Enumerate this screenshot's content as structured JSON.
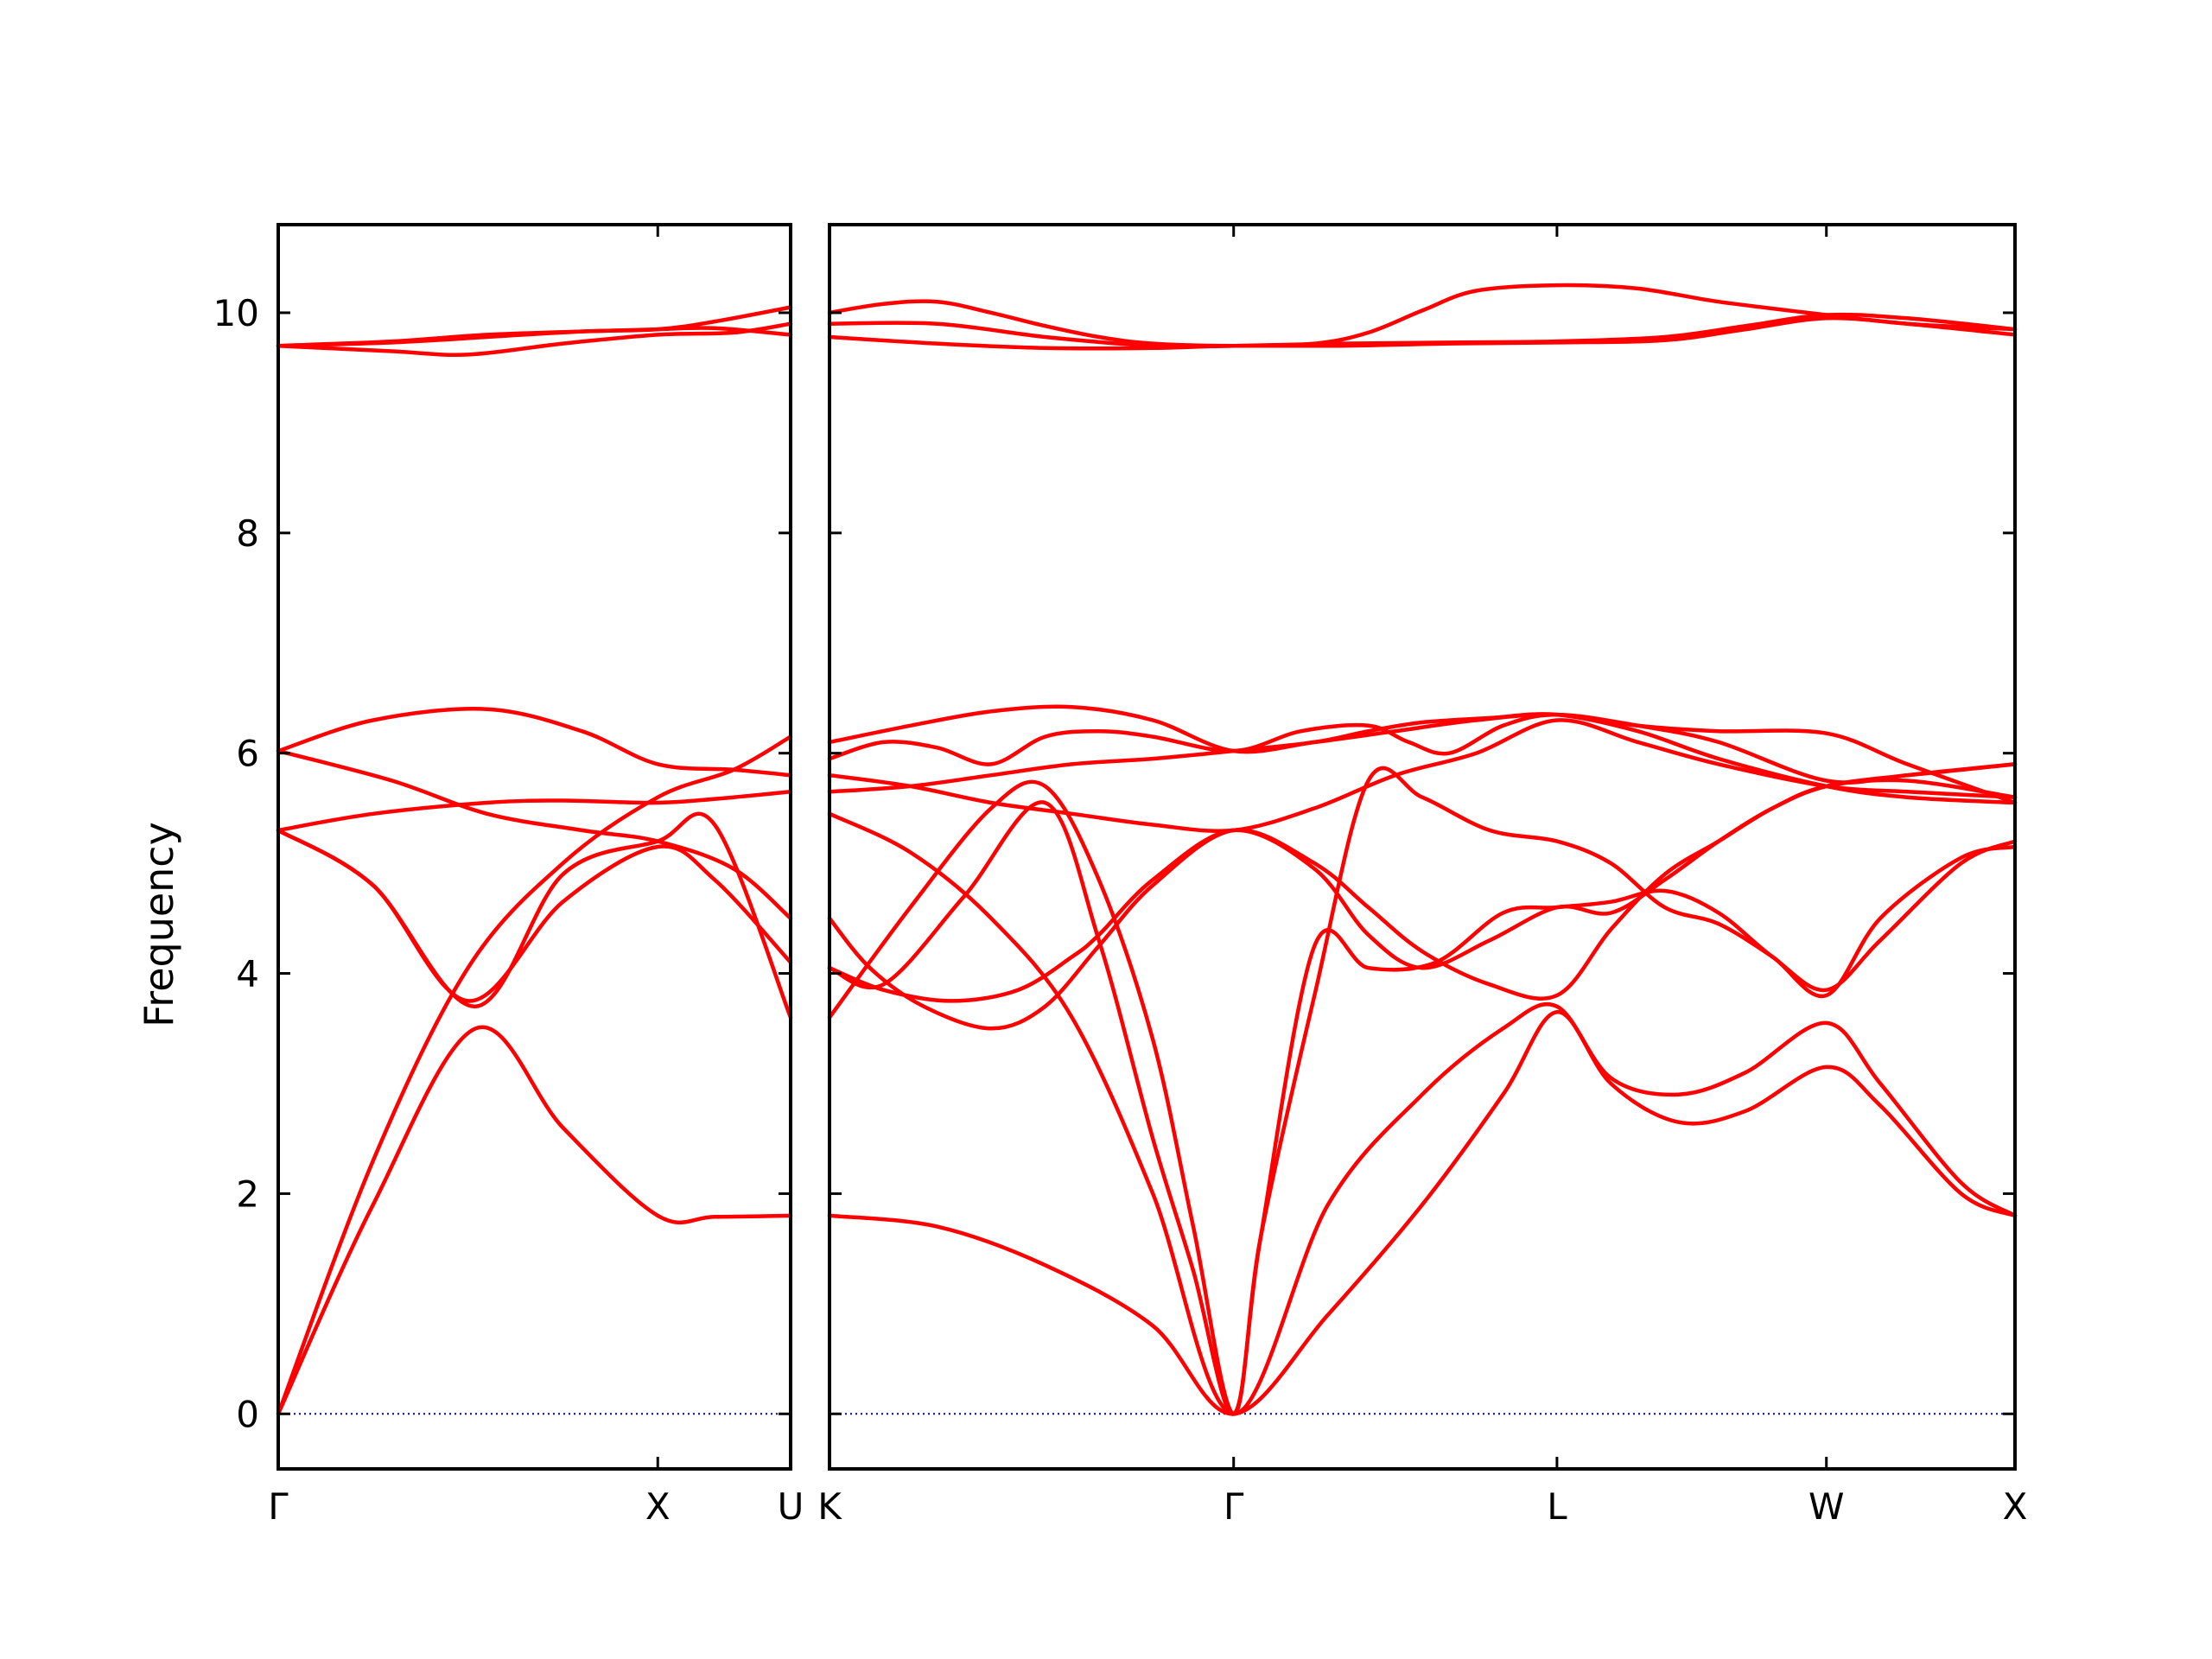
{
  "chart_data": {
    "type": "line",
    "title": "",
    "ylabel": "Frequency",
    "ylim": [
      -0.5,
      10.8
    ],
    "yticks": [
      0,
      2,
      4,
      6,
      8,
      10
    ],
    "grid": false,
    "legend": "none",
    "colors": {
      "bands": "#ff0000",
      "zero_line": "#0000aa",
      "frame": "#000000"
    },
    "panels": [
      {
        "name": "left",
        "xrange": [
          0,
          1.35
        ],
        "xticks": [
          {
            "pos": 0,
            "label": "Γ"
          },
          {
            "pos": 1.0,
            "label": "X"
          },
          {
            "pos": 1.35,
            "label": "U"
          }
        ],
        "series": [
          {
            "x": [
              0,
              0.25,
              0.52,
              0.75,
              1.0,
              1.15,
              1.35
            ],
            "y": [
              0,
              1.9,
              3.5,
              2.6,
              1.8,
              1.79,
              1.8
            ]
          },
          {
            "x": [
              0,
              0.25,
              0.5,
              0.75,
              1.0,
              1.2,
              1.35
            ],
            "y": [
              0,
              2.3,
              4.05,
              5.0,
              5.6,
              5.85,
              6.15
            ]
          },
          {
            "x": [
              0,
              0.25,
              0.5,
              0.75,
              1.0,
              1.15,
              1.35
            ],
            "y": [
              5.3,
              4.8,
              3.75,
              4.65,
              5.15,
              4.85,
              4.1
            ]
          },
          {
            "x": [
              0,
              0.25,
              0.52,
              0.75,
              1.0,
              1.15,
              1.35
            ],
            "y": [
              5.3,
              4.8,
              3.7,
              4.9,
              5.2,
              5.35,
              3.6
            ]
          },
          {
            "x": [
              0,
              0.25,
              0.55,
              0.75,
              1.0,
              1.2,
              1.35
            ],
            "y": [
              5.3,
              5.45,
              5.55,
              5.57,
              5.55,
              5.6,
              5.65
            ]
          },
          {
            "x": [
              0,
              0.3,
              0.55,
              0.8,
              1.0,
              1.2,
              1.35
            ],
            "y": [
              6.02,
              5.75,
              5.45,
              5.3,
              5.2,
              4.95,
              4.5
            ]
          },
          {
            "x": [
              0,
              0.25,
              0.55,
              0.8,
              1.0,
              1.2,
              1.35
            ],
            "y": [
              6.02,
              6.3,
              6.4,
              6.2,
              5.9,
              5.85,
              5.8
            ]
          },
          {
            "x": [
              0,
              0.3,
              0.5,
              0.75,
              1.0,
              1.2,
              1.35
            ],
            "y": [
              9.7,
              9.65,
              9.62,
              9.72,
              9.8,
              9.82,
              9.9
            ]
          },
          {
            "x": [
              0,
              0.3,
              0.55,
              0.8,
              1.0,
              1.15,
              1.35
            ],
            "y": [
              9.7,
              9.73,
              9.78,
              9.83,
              9.85,
              9.92,
              10.05
            ]
          },
          {
            "x": [
              0,
              0.3,
              0.55,
              0.8,
              1.0,
              1.15,
              1.35
            ],
            "y": [
              9.7,
              9.74,
              9.8,
              9.83,
              9.85,
              9.86,
              9.8
            ]
          }
        ]
      },
      {
        "name": "right",
        "xrange": [
          0,
          4.4
        ],
        "xticks": [
          {
            "pos": 0,
            "label": "K"
          },
          {
            "pos": 1.5,
            "label": "Γ"
          },
          {
            "pos": 2.7,
            "label": "L"
          },
          {
            "pos": 3.7,
            "label": "W"
          },
          {
            "pos": 4.4,
            "label": "X"
          }
        ],
        "series": [
          {
            "x": [
              0,
              0.4,
              0.8,
              1.2,
              1.5,
              1.85,
              2.2,
              2.5,
              2.7,
              2.9,
              3.15,
              3.4,
              3.7,
              3.9,
              4.2,
              4.4
            ],
            "y": [
              1.8,
              1.7,
              1.35,
              0.8,
              0,
              0.9,
              1.9,
              2.9,
              3.65,
              3.0,
              2.65,
              2.75,
              3.15,
              2.8,
              2.0,
              1.8
            ]
          },
          {
            "x": [
              0,
              0.3,
              0.6,
              0.9,
              1.2,
              1.5,
              1.85,
              2.2,
              2.5,
              2.7,
              2.9,
              3.15,
              3.4,
              3.7,
              3.9,
              4.2,
              4.4
            ],
            "y": [
              5.45,
              5.1,
              4.5,
              3.6,
              2.0,
              0,
              1.9,
              2.9,
              3.5,
              3.7,
              3.05,
              2.9,
              3.1,
              3.55,
              3.0,
              2.1,
              1.8
            ]
          },
          {
            "x": [
              0,
              0.3,
              0.6,
              0.8,
              1.0,
              1.2,
              1.35,
              1.5,
              1.6,
              1.8,
              2.0,
              2.2,
              2.45,
              2.7,
              2.9,
              3.1,
              3.3,
              3.5,
              3.7,
              3.9,
              4.2,
              4.4
            ],
            "y": [
              3.6,
              4.6,
              5.5,
              5.7,
              4.85,
              3.4,
              1.7,
              0,
              1.6,
              3.8,
              5.75,
              5.6,
              5.3,
              5.2,
              5.0,
              4.6,
              4.45,
              4.15,
              3.8,
              4.5,
              5.05,
              5.15
            ]
          },
          {
            "x": [
              0,
              0.2,
              0.5,
              0.8,
              1.0,
              1.2,
              1.35,
              1.5,
              1.6,
              1.8,
              2.0,
              2.25,
              2.5,
              2.7,
              2.9,
              3.1,
              3.3,
              3.5,
              3.7,
              3.9,
              4.2,
              4.4
            ],
            "y": [
              4.05,
              3.9,
              4.7,
              5.55,
              4.3,
              2.5,
              1.3,
              0,
              1.6,
              4.25,
              4.05,
              4.1,
              4.55,
              4.6,
              4.65,
              4.75,
              4.55,
              4.15,
              3.85,
              4.3,
              5.0,
              5.2
            ]
          },
          {
            "x": [
              0,
              0.15,
              0.35,
              0.6,
              0.8,
              1.0,
              1.2,
              1.5,
              1.8,
              2.0,
              2.2,
              2.45,
              2.7,
              2.9,
              3.1,
              3.3,
              3.5,
              3.7,
              4.0,
              4.4
            ],
            "y": [
              4.5,
              4.05,
              3.7,
              3.5,
              3.7,
              4.25,
              4.8,
              5.3,
              5.0,
              4.6,
              4.2,
              3.9,
              3.8,
              4.4,
              4.9,
              5.2,
              5.5,
              5.7,
              5.8,
              5.9
            ]
          },
          {
            "x": [
              0,
              0.2,
              0.45,
              0.7,
              0.9,
              1.0,
              1.2,
              1.5,
              1.8,
              2.0,
              2.2,
              2.45,
              2.7,
              2.9,
              3.1,
              3.3,
              3.5,
              3.7,
              4.0,
              4.4
            ],
            "y": [
              4.05,
              3.85,
              3.75,
              3.85,
              4.15,
              4.35,
              4.85,
              5.3,
              4.95,
              4.35,
              4.05,
              4.3,
              4.6,
              4.55,
              4.85,
              5.2,
              5.5,
              5.7,
              5.75,
              5.6
            ]
          },
          {
            "x": [
              0,
              0.3,
              0.6,
              0.9,
              1.2,
              1.5,
              1.8,
              2.1,
              2.4,
              2.7,
              3.0,
              3.3,
              3.7,
              4.0,
              4.4
            ],
            "y": [
              5.8,
              5.7,
              5.55,
              5.45,
              5.35,
              5.3,
              5.5,
              5.8,
              6.0,
              6.3,
              6.1,
              5.9,
              5.7,
              5.65,
              5.6
            ]
          },
          {
            "x": [
              0,
              0.3,
              0.6,
              0.9,
              1.2,
              1.5,
              1.8,
              2.0,
              2.2,
              2.45,
              2.7,
              3.0,
              3.3,
              3.7,
              4.0,
              4.4
            ],
            "y": [
              5.65,
              5.7,
              5.8,
              5.9,
              5.95,
              6.02,
              6.1,
              6.2,
              6.28,
              6.32,
              6.35,
              6.2,
              5.95,
              5.7,
              5.6,
              5.55
            ]
          },
          {
            "x": [
              0,
              0.2,
              0.4,
              0.6,
              0.8,
              1.0,
              1.2,
              1.5,
              1.75,
              2.0,
              2.15,
              2.3,
              2.5,
              2.7,
              3.0,
              3.3,
              3.7,
              4.0,
              4.4
            ],
            "y": [
              5.95,
              6.1,
              6.05,
              5.9,
              6.15,
              6.2,
              6.15,
              6.02,
              6.2,
              6.25,
              6.1,
              6.0,
              6.25,
              6.35,
              6.25,
              6.1,
              5.75,
              5.8,
              5.9
            ]
          },
          {
            "x": [
              0,
              0.3,
              0.6,
              0.9,
              1.2,
              1.5,
              1.8,
              2.1,
              2.4,
              2.7,
              3.0,
              3.3,
              3.7,
              4.0,
              4.4
            ],
            "y": [
              6.1,
              6.25,
              6.38,
              6.42,
              6.3,
              6.02,
              6.1,
              6.2,
              6.3,
              6.35,
              6.25,
              6.2,
              6.18,
              5.9,
              5.55
            ]
          },
          {
            "x": [
              0,
              0.4,
              0.8,
              1.2,
              1.5,
              1.9,
              2.3,
              2.7,
              3.1,
              3.4,
              3.7,
              4.0,
              4.4
            ],
            "y": [
              9.78,
              9.72,
              9.68,
              9.68,
              9.7,
              9.7,
              9.72,
              9.73,
              9.75,
              9.85,
              9.95,
              9.9,
              9.8
            ]
          },
          {
            "x": [
              0,
              0.4,
              0.8,
              1.2,
              1.5,
              1.9,
              2.3,
              2.7,
              3.1,
              3.4,
              3.7,
              4.0,
              4.4
            ],
            "y": [
              9.9,
              9.9,
              9.78,
              9.7,
              9.7,
              9.72,
              9.73,
              9.74,
              9.78,
              9.88,
              9.98,
              9.95,
              9.85
            ]
          },
          {
            "x": [
              0,
              0.2,
              0.4,
              0.6,
              0.8,
              1.0,
              1.2,
              1.5,
              1.8,
              2.0,
              2.2,
              2.4,
              2.7,
              3.0,
              3.3,
              3.7,
              4.0,
              4.4
            ],
            "y": [
              10.0,
              10.08,
              10.1,
              10.0,
              9.88,
              9.78,
              9.72,
              9.7,
              9.72,
              9.82,
              10.02,
              10.2,
              10.25,
              10.22,
              10.1,
              9.98,
              9.9,
              9.85
            ]
          }
        ]
      }
    ]
  }
}
